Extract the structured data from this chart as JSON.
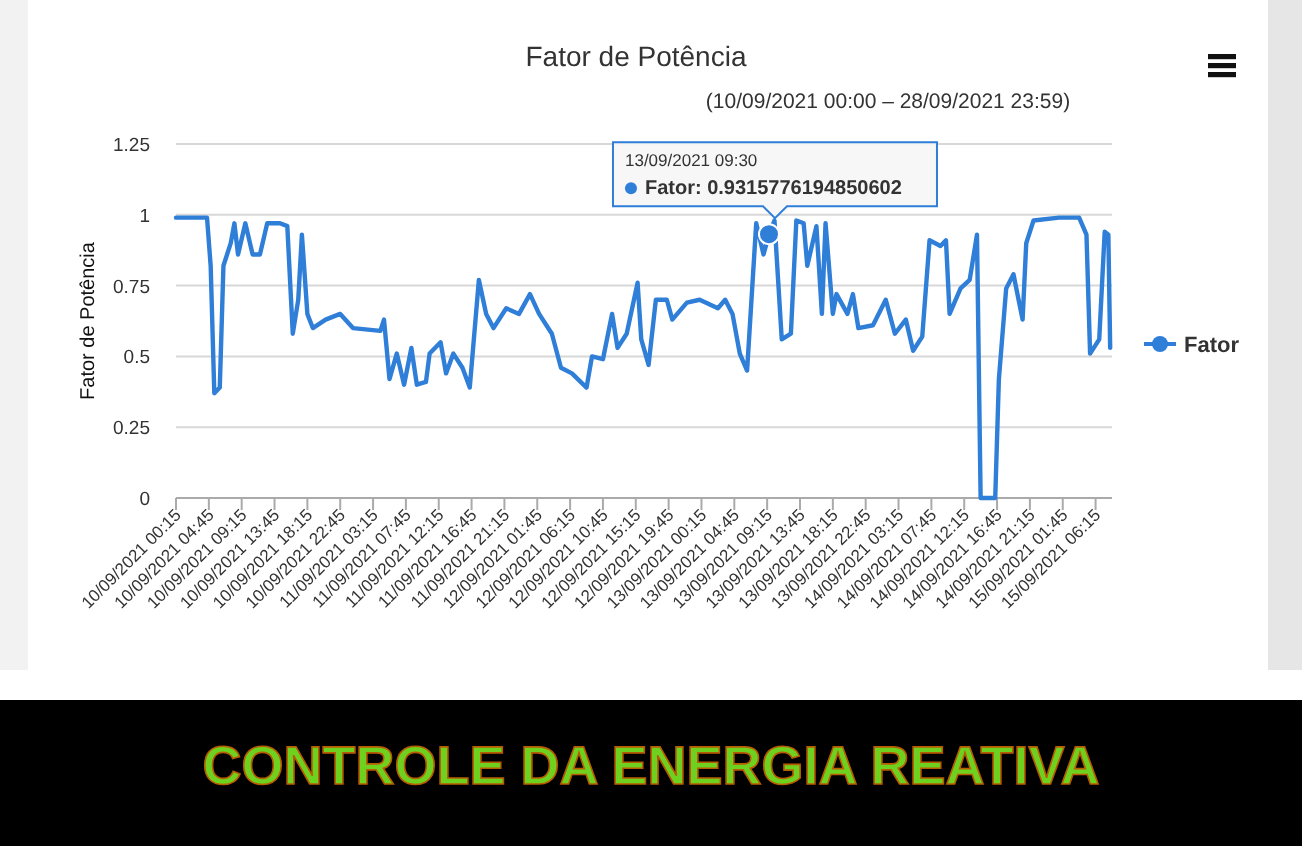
{
  "chart_data": {
    "type": "line",
    "title": "Fator de Potência",
    "subtitle": "(10/09/2021 00:00 – 28/09/2021 23:59)",
    "ylabel": "Fator de Potência",
    "annotations": [
      {
        "text": "13/09/2021 09:30\nFator: 0.9315776194850602",
        "x": "2021-09-13T09:30",
        "y": 0.9315776194850602
      },
      "CONTROLE DA ENERGIA REATIVA"
    ],
    "x": [
      "2021-09-10T00:15",
      "2021-09-10T04:30",
      "2021-09-10T05:00",
      "2021-09-10T05:30",
      "2021-09-10T06:15",
      "2021-09-10T06:45",
      "2021-09-10T07:45",
      "2021-09-10T08:15",
      "2021-09-10T08:45",
      "2021-09-10T09:45",
      "2021-09-10T10:45",
      "2021-09-10T11:45",
      "2021-09-10T12:45",
      "2021-09-10T14:30",
      "2021-09-10T15:30",
      "2021-09-10T16:15",
      "2021-09-10T17:00",
      "2021-09-10T17:30",
      "2021-09-10T18:15",
      "2021-09-10T19:00",
      "2021-09-10T20:45",
      "2021-09-10T22:45",
      "2021-09-11T00:30",
      "2021-09-11T04:15",
      "2021-09-11T04:45",
      "2021-09-11T05:30",
      "2021-09-11T06:30",
      "2021-09-11T07:30",
      "2021-09-11T08:30",
      "2021-09-11T09:15",
      "2021-09-11T10:30",
      "2021-09-11T11:00",
      "2021-09-11T12:30",
      "2021-09-11T13:15",
      "2021-09-11T14:15",
      "2021-09-11T15:30",
      "2021-09-11T16:30",
      "2021-09-11T17:45",
      "2021-09-11T18:45",
      "2021-09-11T19:45",
      "2021-09-11T21:30",
      "2021-09-11T23:15",
      "2021-09-12T00:45",
      "2021-09-12T02:00",
      "2021-09-12T03:45",
      "2021-09-12T05:00",
      "2021-09-12T06:30",
      "2021-09-12T08:30",
      "2021-09-12T09:15",
      "2021-09-12T10:45",
      "2021-09-12T12:00",
      "2021-09-12T12:45",
      "2021-09-12T14:00",
      "2021-09-12T15:30",
      "2021-09-12T16:00",
      "2021-09-12T17:00",
      "2021-09-12T18:00",
      "2021-09-12T19:30",
      "2021-09-12T20:15",
      "2021-09-12T22:15",
      "2021-09-13T00:00",
      "2021-09-13T02:30",
      "2021-09-13T03:30",
      "2021-09-13T04:30",
      "2021-09-13T05:30",
      "2021-09-13T06:30",
      "2021-09-13T07:45",
      "2021-09-13T08:45",
      "2021-09-13T09:30",
      "2021-09-13T10:15",
      "2021-09-13T11:15",
      "2021-09-13T12:30",
      "2021-09-13T13:15",
      "2021-09-13T14:15",
      "2021-09-13T14:45",
      "2021-09-13T16:00",
      "2021-09-13T16:45",
      "2021-09-13T17:15",
      "2021-09-13T18:15",
      "2021-09-13T18:45",
      "2021-09-13T20:15",
      "2021-09-13T21:00",
      "2021-09-13T21:45",
      "2021-09-13T23:45",
      "2021-09-14T01:30",
      "2021-09-14T02:45",
      "2021-09-14T04:15",
      "2021-09-14T05:15",
      "2021-09-14T06:30",
      "2021-09-14T07:30",
      "2021-09-14T09:00",
      "2021-09-14T09:45",
      "2021-09-14T10:15",
      "2021-09-14T11:45",
      "2021-09-14T13:00",
      "2021-09-14T14:00",
      "2021-09-14T14:30",
      "2021-09-14T16:30",
      "2021-09-14T17:00",
      "2021-09-14T18:00",
      "2021-09-14T19:00",
      "2021-09-14T20:15",
      "2021-09-14T20:45",
      "2021-09-14T21:45",
      "2021-09-15T01:15",
      "2021-09-15T04:00",
      "2021-09-15T05:00",
      "2021-09-15T05:30",
      "2021-09-15T06:45",
      "2021-09-15T07:30",
      "2021-09-15T08:00",
      "2021-09-15T08:15"
    ],
    "series": [
      {
        "name": "Fator",
        "color": "#2f7ed8",
        "values": [
          0.99,
          0.99,
          0.82,
          0.37,
          0.39,
          0.82,
          0.9,
          0.97,
          0.86,
          0.97,
          0.86,
          0.86,
          0.97,
          0.97,
          0.96,
          0.58,
          0.7,
          0.93,
          0.65,
          0.6,
          0.63,
          0.65,
          0.6,
          0.59,
          0.63,
          0.42,
          0.51,
          0.4,
          0.53,
          0.4,
          0.41,
          0.51,
          0.55,
          0.44,
          0.51,
          0.46,
          0.39,
          0.77,
          0.65,
          0.6,
          0.67,
          0.65,
          0.72,
          0.65,
          0.58,
          0.46,
          0.44,
          0.39,
          0.5,
          0.49,
          0.65,
          0.53,
          0.58,
          0.76,
          0.56,
          0.47,
          0.7,
          0.7,
          0.63,
          0.69,
          0.7,
          0.67,
          0.7,
          0.65,
          0.51,
          0.45,
          0.97,
          0.86,
          0.93,
          0.98,
          0.56,
          0.58,
          0.98,
          0.97,
          0.82,
          0.96,
          0.65,
          0.97,
          0.65,
          0.72,
          0.65,
          0.72,
          0.6,
          0.61,
          0.7,
          0.58,
          0.63,
          0.52,
          0.57,
          0.91,
          0.89,
          0.91,
          0.65,
          0.74,
          0.77,
          0.93,
          0,
          0,
          0.42,
          0.74,
          0.79,
          0.63,
          0.9,
          0.98,
          0.99,
          0.99,
          0.93,
          0.51,
          0.56,
          0.94,
          0.93,
          0.53
        ]
      }
    ],
    "xlim": [
      "2021-09-10T00:15",
      "2021-09-15T08:30"
    ],
    "xticks": [
      {
        "value": "2021-09-10T00:15",
        "label": "10/09/2021 00:15"
      },
      {
        "value": "2021-09-10T04:45",
        "label": "10/09/2021 04:45"
      },
      {
        "value": "2021-09-10T09:15",
        "label": "10/09/2021 09:15"
      },
      {
        "value": "2021-09-10T13:45",
        "label": "10/09/2021 13:45"
      },
      {
        "value": "2021-09-10T18:15",
        "label": "10/09/2021 18:15"
      },
      {
        "value": "2021-09-10T22:45",
        "label": "10/09/2021 22:45"
      },
      {
        "value": "2021-09-11T03:15",
        "label": "11/09/2021 03:15"
      },
      {
        "value": "2021-09-11T07:45",
        "label": "11/09/2021 07:45"
      },
      {
        "value": "2021-09-11T12:15",
        "label": "11/09/2021 12:15"
      },
      {
        "value": "2021-09-11T16:45",
        "label": "11/09/2021 16:45"
      },
      {
        "value": "2021-09-11T21:15",
        "label": "11/09/2021 21:15"
      },
      {
        "value": "2021-09-12T01:45",
        "label": "12/09/2021 01:45"
      },
      {
        "value": "2021-09-12T06:15",
        "label": "12/09/2021 06:15"
      },
      {
        "value": "2021-09-12T10:45",
        "label": "12/09/2021 10:45"
      },
      {
        "value": "2021-09-12T15:15",
        "label": "12/09/2021 15:15"
      },
      {
        "value": "2021-09-12T19:45",
        "label": "12/09/2021 19:45"
      },
      {
        "value": "2021-09-13T00:15",
        "label": "13/09/2021 00:15"
      },
      {
        "value": "2021-09-13T04:45",
        "label": "13/09/2021 04:45"
      },
      {
        "value": "2021-09-13T09:15",
        "label": "13/09/2021 09:15"
      },
      {
        "value": "2021-09-13T13:45",
        "label": "13/09/2021 13:45"
      },
      {
        "value": "2021-09-13T18:15",
        "label": "13/09/2021 18:15"
      },
      {
        "value": "2021-09-13T22:45",
        "label": "13/09/2021 22:45"
      },
      {
        "value": "2021-09-14T03:15",
        "label": "14/09/2021 03:15"
      },
      {
        "value": "2021-09-14T07:45",
        "label": "14/09/2021 07:45"
      },
      {
        "value": "2021-09-14T12:15",
        "label": "14/09/2021 12:15"
      },
      {
        "value": "2021-09-14T16:45",
        "label": "14/09/2021 16:45"
      },
      {
        "value": "2021-09-14T21:15",
        "label": "14/09/2021 21:15"
      },
      {
        "value": "2021-09-15T01:45",
        "label": "15/09/2021 01:45"
      },
      {
        "value": "2021-09-15T06:15",
        "label": "15/09/2021 06:15"
      }
    ],
    "ylim": [
      0,
      1.25
    ],
    "yticks": [
      0,
      0.25,
      0.5,
      0.75,
      1,
      1.25
    ],
    "grid": "y",
    "legend": "right",
    "line_style": "solid"
  }
}
